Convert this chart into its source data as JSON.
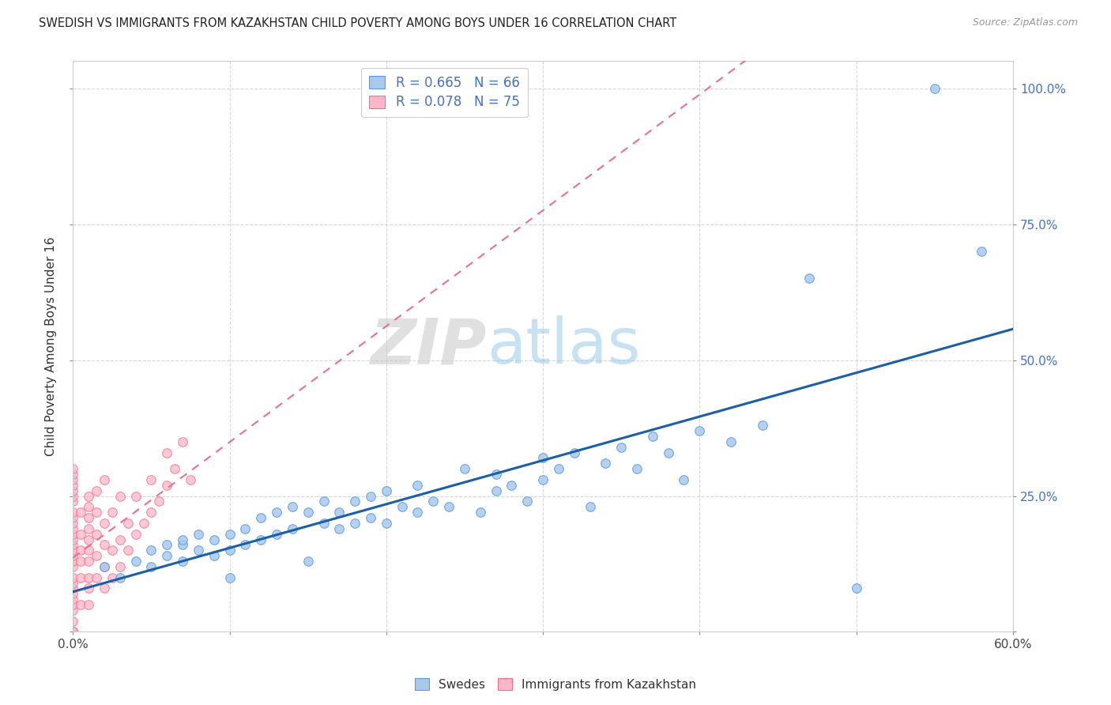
{
  "title": "SWEDISH VS IMMIGRANTS FROM KAZAKHSTAN CHILD POVERTY AMONG BOYS UNDER 16 CORRELATION CHART",
  "source": "Source: ZipAtlas.com",
  "ylabel": "Child Poverty Among Boys Under 16",
  "xlim": [
    0,
    0.6
  ],
  "ylim": [
    0,
    1.05
  ],
  "xtick_positions": [
    0.0,
    0.1,
    0.2,
    0.3,
    0.4,
    0.5,
    0.6
  ],
  "xticklabels_ends": [
    "0.0%",
    "",
    "",
    "",
    "",
    "",
    "60.0%"
  ],
  "yticks": [
    0.0,
    0.25,
    0.5,
    0.75,
    1.0
  ],
  "yticklabels_right": [
    "",
    "25.0%",
    "50.0%",
    "75.0%",
    "100.0%"
  ],
  "swedes_color": "#a8c8f0",
  "swedes_edge": "#5a9fd4",
  "kazakhstan_color": "#ffb6c8",
  "kazakhstan_edge": "#f07090",
  "trendline_swedes_color": "#1a5fa8",
  "trendline_kaz_color": "#e87090",
  "legend_label_swedes": "R = 0.665   N = 66",
  "legend_label_kaz": "R = 0.078   N = 75",
  "legend_swedes_color": "#a8c8f0",
  "legend_swedes_edge": "#5a9fd4",
  "legend_kaz_color": "#ffb6c8",
  "legend_kaz_edge": "#f07090",
  "watermark_zip": "ZIP",
  "watermark_atlas": "atlas",
  "marker_size": 70,
  "swedes_x": [
    0.02,
    0.03,
    0.04,
    0.05,
    0.05,
    0.06,
    0.06,
    0.07,
    0.07,
    0.07,
    0.08,
    0.08,
    0.09,
    0.09,
    0.1,
    0.1,
    0.1,
    0.11,
    0.11,
    0.12,
    0.12,
    0.13,
    0.13,
    0.14,
    0.14,
    0.15,
    0.15,
    0.16,
    0.16,
    0.17,
    0.17,
    0.18,
    0.18,
    0.19,
    0.19,
    0.2,
    0.2,
    0.21,
    0.22,
    0.22,
    0.23,
    0.24,
    0.25,
    0.26,
    0.27,
    0.27,
    0.28,
    0.29,
    0.3,
    0.3,
    0.31,
    0.32,
    0.33,
    0.34,
    0.35,
    0.36,
    0.37,
    0.38,
    0.39,
    0.4,
    0.42,
    0.44,
    0.47,
    0.5,
    0.55,
    0.58
  ],
  "swedes_y": [
    0.12,
    0.1,
    0.13,
    0.12,
    0.15,
    0.14,
    0.16,
    0.13,
    0.16,
    0.17,
    0.15,
    0.18,
    0.14,
    0.17,
    0.1,
    0.15,
    0.18,
    0.16,
    0.19,
    0.17,
    0.21,
    0.18,
    0.22,
    0.19,
    0.23,
    0.13,
    0.22,
    0.2,
    0.24,
    0.19,
    0.22,
    0.2,
    0.24,
    0.21,
    0.25,
    0.2,
    0.26,
    0.23,
    0.22,
    0.27,
    0.24,
    0.23,
    0.3,
    0.22,
    0.26,
    0.29,
    0.27,
    0.24,
    0.28,
    0.32,
    0.3,
    0.33,
    0.23,
    0.31,
    0.34,
    0.3,
    0.36,
    0.33,
    0.28,
    0.37,
    0.35,
    0.38,
    0.65,
    0.08,
    1.0,
    0.7
  ],
  "kaz_x": [
    0.0,
    0.0,
    0.0,
    0.0,
    0.0,
    0.0,
    0.0,
    0.0,
    0.0,
    0.0,
    0.0,
    0.0,
    0.0,
    0.0,
    0.0,
    0.0,
    0.0,
    0.0,
    0.0,
    0.0,
    0.0,
    0.0,
    0.0,
    0.0,
    0.0,
    0.0,
    0.0,
    0.0,
    0.0,
    0.0,
    0.005,
    0.005,
    0.005,
    0.005,
    0.005,
    0.005,
    0.01,
    0.01,
    0.01,
    0.01,
    0.01,
    0.01,
    0.01,
    0.01,
    0.01,
    0.01,
    0.015,
    0.015,
    0.015,
    0.015,
    0.015,
    0.02,
    0.02,
    0.02,
    0.02,
    0.02,
    0.025,
    0.025,
    0.025,
    0.03,
    0.03,
    0.03,
    0.035,
    0.035,
    0.04,
    0.04,
    0.045,
    0.05,
    0.05,
    0.055,
    0.06,
    0.06,
    0.065,
    0.07,
    0.075
  ],
  "kaz_y": [
    0.0,
    0.0,
    0.0,
    0.0,
    0.02,
    0.04,
    0.05,
    0.06,
    0.07,
    0.08,
    0.09,
    0.1,
    0.12,
    0.13,
    0.14,
    0.15,
    0.16,
    0.17,
    0.18,
    0.19,
    0.2,
    0.21,
    0.22,
    0.24,
    0.25,
    0.26,
    0.27,
    0.28,
    0.29,
    0.3,
    0.05,
    0.1,
    0.13,
    0.15,
    0.18,
    0.22,
    0.05,
    0.08,
    0.1,
    0.13,
    0.15,
    0.17,
    0.19,
    0.21,
    0.23,
    0.25,
    0.1,
    0.14,
    0.18,
    0.22,
    0.26,
    0.08,
    0.12,
    0.16,
    0.2,
    0.28,
    0.1,
    0.15,
    0.22,
    0.12,
    0.17,
    0.25,
    0.15,
    0.2,
    0.18,
    0.25,
    0.2,
    0.22,
    0.28,
    0.24,
    0.27,
    0.33,
    0.3,
    0.35,
    0.28
  ]
}
